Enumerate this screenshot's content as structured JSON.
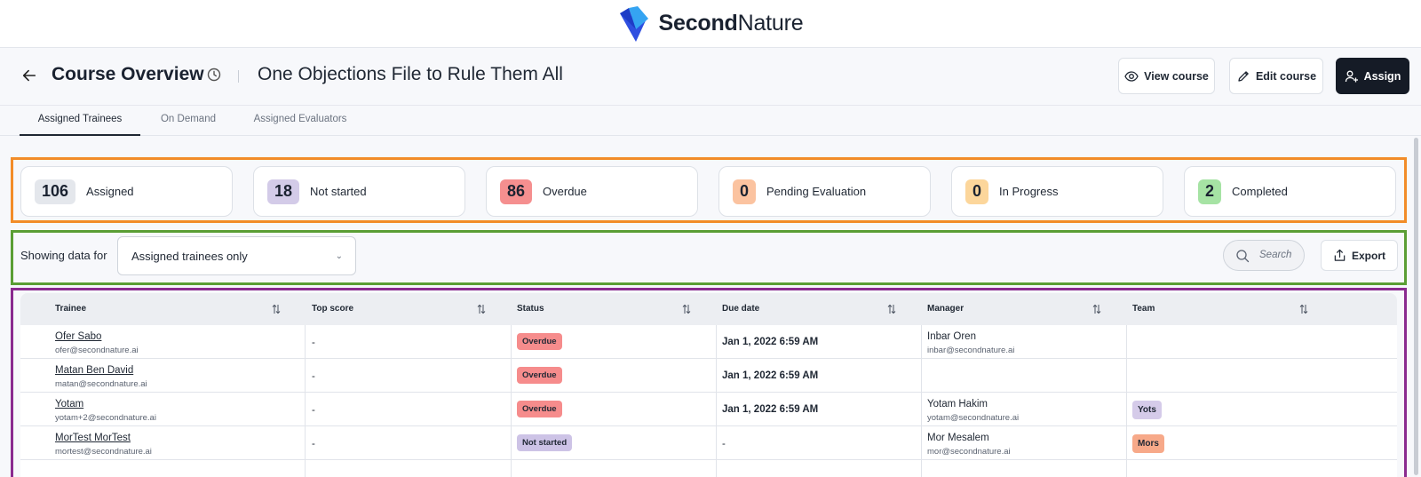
{
  "brand": {
    "name_bold": "Second",
    "name_regular": "Nature"
  },
  "header": {
    "title": "Course Overview",
    "course_name": "One Objections File to Rule Them All",
    "view_course_label": "View course",
    "edit_course_label": "Edit course",
    "assign_label": "Assign"
  },
  "tabs": [
    {
      "label": "Assigned Trainees",
      "active": true
    },
    {
      "label": "On Demand",
      "active": false
    },
    {
      "label": "Assigned Evaluators",
      "active": false
    }
  ],
  "stats": [
    {
      "value": "106",
      "label": "Assigned",
      "color": "#e4e7ec"
    },
    {
      "value": "18",
      "label": "Not started",
      "color": "#d3cbe8"
    },
    {
      "value": "86",
      "label": "Overdue",
      "color": "#f58f8f"
    },
    {
      "value": "0",
      "label": "Pending Evaluation",
      "color": "#fbc3a0"
    },
    {
      "value": "0",
      "label": "In Progress",
      "color": "#fcd69b"
    },
    {
      "value": "2",
      "label": "Completed",
      "color": "#a6e3a4"
    }
  ],
  "filter": {
    "label": "Showing data for",
    "selected": "Assigned trainees only",
    "search_placeholder": "Search",
    "export_label": "Export"
  },
  "table": {
    "columns": [
      "Trainee",
      "Top score",
      "Status",
      "Due date",
      "Manager",
      "Team"
    ],
    "rows": [
      {
        "trainee": "Ofer Sabo",
        "email": "ofer@secondnature.ai",
        "top_score": "-",
        "status": "Overdue",
        "due": "Jan 1, 2022 6:59 AM",
        "manager": "Inbar Oren",
        "manager_email": "inbar@secondnature.ai",
        "team": ""
      },
      {
        "trainee": "Matan Ben David",
        "email": "matan@secondnature.ai",
        "top_score": "-",
        "status": "Overdue",
        "due": "Jan 1, 2022 6:59 AM",
        "manager": "",
        "manager_email": "",
        "team": ""
      },
      {
        "trainee": "Yotam",
        "email": "yotam+2@secondnature.ai",
        "top_score": "-",
        "status": "Overdue",
        "due": "Jan 1, 2022 6:59 AM",
        "manager": "Yotam Hakim",
        "manager_email": "yotam@secondnature.ai",
        "team": "Yots"
      },
      {
        "trainee": "MorTest MorTest",
        "email": "mortest@secondnature.ai",
        "top_score": "-",
        "status": "Not started",
        "due": "-",
        "manager": "Mor Mesalem",
        "manager_email": "mor@secondnature.ai",
        "team": "Mors"
      }
    ]
  },
  "colors": {
    "overdue": "#f68c8c",
    "not_started": "#cdc3e6",
    "team_yots": "#d5cbe9",
    "team_mors": "#f7a989",
    "annotation_orange": "#f28c28",
    "annotation_green": "#5a9e34",
    "annotation_purple": "#8a2a8f"
  }
}
